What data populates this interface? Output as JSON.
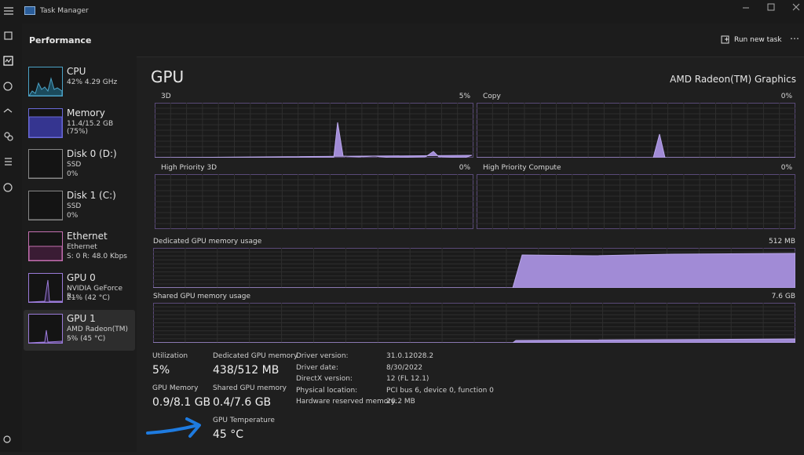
{
  "window": {
    "title": "Task Manager"
  },
  "header": {
    "section": "Performance",
    "action": "Run new task"
  },
  "sidebar": [
    {
      "name": "CPU",
      "lines": [
        "42% 4.29 GHz"
      ]
    },
    {
      "name": "Memory",
      "lines": [
        "11.4/15.2 GB (75%)"
      ]
    },
    {
      "name": "Disk 0 (D:)",
      "lines": [
        "SSD",
        "0%"
      ]
    },
    {
      "name": "Disk 1 (C:)",
      "lines": [
        "SSD",
        "0%"
      ]
    },
    {
      "name": "Ethernet",
      "lines": [
        "Ethernet",
        "S: 0 R: 48.0 Kbps"
      ]
    },
    {
      "name": "GPU 0",
      "lines": [
        "NVIDIA GeForce R...",
        "21% (42 °C)"
      ]
    },
    {
      "name": "GPU 1",
      "lines": [
        "AMD Radeon(TM) ...",
        "5% (45 °C)"
      ]
    }
  ],
  "main": {
    "title": "GPU",
    "device": "AMD Radeon(TM) Graphics",
    "graphs": [
      {
        "label": "3D",
        "max": "5%"
      },
      {
        "label": "Copy",
        "max": "0%"
      },
      {
        "label": "High Priority 3D",
        "max": "0%"
      },
      {
        "label": "High Priority Compute",
        "max": "0%"
      }
    ],
    "memory_graphs": [
      {
        "label": "Dedicated GPU memory usage",
        "max": "512 MB"
      },
      {
        "label": "Shared GPU memory usage",
        "max": "7.6 GB"
      }
    ],
    "stats": [
      {
        "label": "Utilization",
        "value": "5%"
      },
      {
        "label": "Dedicated GPU memory",
        "value": "438/512 MB"
      },
      {
        "label": "GPU Memory",
        "value": "0.9/8.1 GB"
      },
      {
        "label": "Shared GPU memory",
        "value": "0.4/7.6 GB"
      },
      {
        "label": "GPU Temperature",
        "value": "45 °C"
      }
    ],
    "details": [
      [
        "Driver version:",
        "31.0.12028.2"
      ],
      [
        "Driver date:",
        "8/30/2022"
      ],
      [
        "DirectX version:",
        "12 (FL 12.1)"
      ],
      [
        "Physical location:",
        "PCI bus 6, device 0, function 0"
      ],
      [
        "Hardware reserved memory:",
        "26.2 MB"
      ]
    ]
  }
}
